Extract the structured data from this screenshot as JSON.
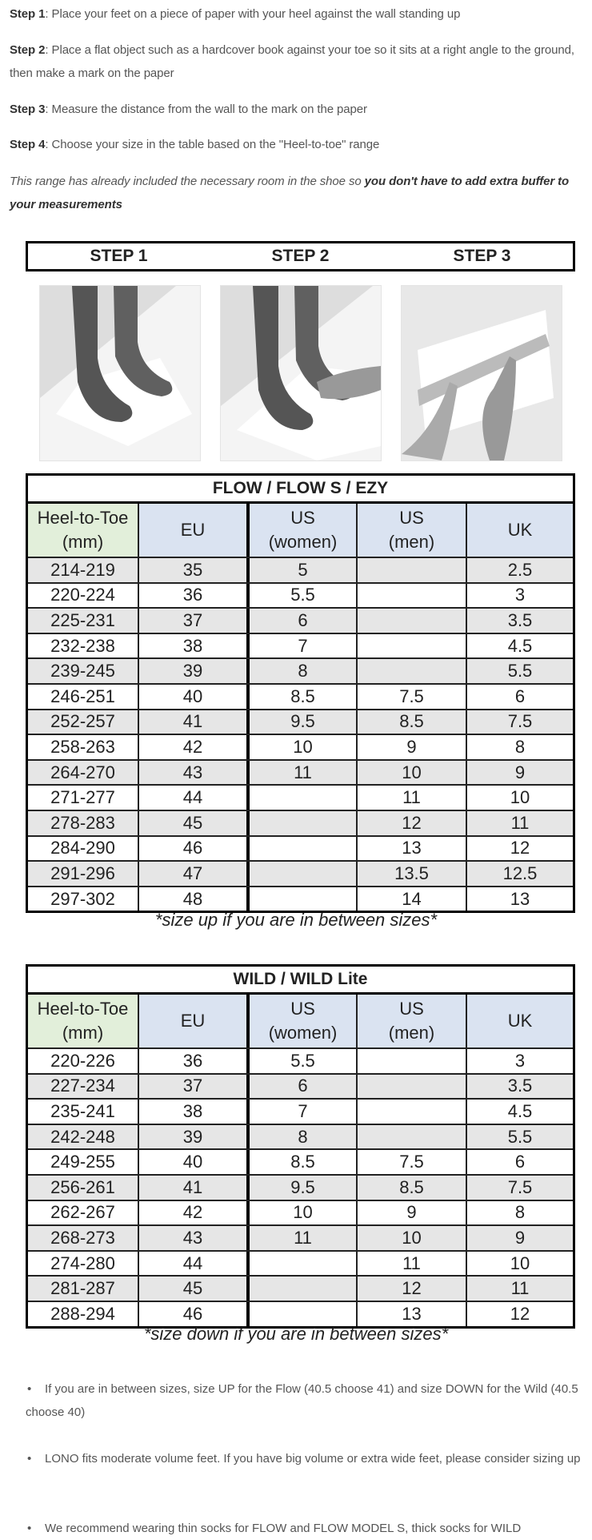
{
  "instructions": [
    {
      "label": "Step 1",
      "text": ": Place your feet on a piece of paper with your heel against the wall standing up"
    },
    {
      "label": "Step 2",
      "text": ": Place a flat object such as a hardcover book against your toe so it sits at a right angle to the ground, then make a mark on the paper"
    },
    {
      "label": "Step 3",
      "text": ": Measure the distance from the wall to the mark on the paper"
    },
    {
      "label": "Step 4",
      "text": ": Choose your size in the table based on the \"Heel-to-toe\" range"
    }
  ],
  "note": {
    "italic": "This range has already included the necessary room in the shoe so ",
    "bold": "you don't have to add extra buffer to your measurements"
  },
  "steps_header": [
    "STEP 1",
    "STEP 2",
    "STEP 3"
  ],
  "headers": [
    [
      "Heel-to-Toe",
      "(mm)"
    ],
    [
      "EU"
    ],
    [
      "US",
      "(women)"
    ],
    [
      "US",
      "(men)"
    ],
    [
      "UK"
    ]
  ],
  "colors": {
    "header_green": "#e2efda",
    "header_blue": "#dae3f1",
    "row_grey": "#e6e6e6"
  },
  "tables": [
    {
      "title": "FLOW / FLOW S / EZY",
      "rows": [
        [
          "214-219",
          "35",
          "5",
          "",
          "2.5"
        ],
        [
          "220-224",
          "36",
          "5.5",
          "",
          "3"
        ],
        [
          "225-231",
          "37",
          "6",
          "",
          "3.5"
        ],
        [
          "232-238",
          "38",
          "7",
          "",
          "4.5"
        ],
        [
          "239-245",
          "39",
          "8",
          "",
          "5.5"
        ],
        [
          "246-251",
          "40",
          "8.5",
          "7.5",
          "6"
        ],
        [
          "252-257",
          "41",
          "9.5",
          "8.5",
          "7.5"
        ],
        [
          "258-263",
          "42",
          "10",
          "9",
          "8"
        ],
        [
          "264-270",
          "43",
          "11",
          "10",
          "9"
        ],
        [
          "271-277",
          "44",
          "",
          "11",
          "10"
        ],
        [
          "278-283",
          "45",
          "",
          "12",
          "11"
        ],
        [
          "284-290",
          "46",
          "",
          "13",
          "12"
        ],
        [
          "291-296",
          "47",
          "",
          "13.5",
          "12.5"
        ],
        [
          "297-302",
          "48",
          "",
          "14",
          "13"
        ]
      ],
      "footnote": "*size up if you are in between sizes*"
    },
    {
      "title": "WILD / WILD Lite",
      "rows": [
        [
          "220-226",
          "36",
          "5.5",
          "",
          "3"
        ],
        [
          "227-234",
          "37",
          "6",
          "",
          "3.5"
        ],
        [
          "235-241",
          "38",
          "7",
          "",
          "4.5"
        ],
        [
          "242-248",
          "39",
          "8",
          "",
          "5.5"
        ],
        [
          "249-255",
          "40",
          "8.5",
          "7.5",
          "6"
        ],
        [
          "256-261",
          "41",
          "9.5",
          "8.5",
          "7.5"
        ],
        [
          "262-267",
          "42",
          "10",
          "9",
          "8"
        ],
        [
          "268-273",
          "43",
          "11",
          "10",
          "9"
        ],
        [
          "274-280",
          "44",
          "",
          "11",
          "10"
        ],
        [
          "281-287",
          "45",
          "",
          "12",
          "11"
        ],
        [
          "288-294",
          "46",
          "",
          "13",
          "12"
        ]
      ],
      "footnote": "*size down if you are in between sizes*"
    }
  ],
  "bullets": [
    "If you are in between sizes, size UP for the Flow (40.5 choose 41) and size DOWN for the Wild (40.5 choose 40)",
    "LONO fits moderate volume feet. If you have big volume or extra wide feet, please consider sizing up",
    "We recommend wearing thin socks for FLOW and FLOW MODEL S, thick socks for WILD"
  ]
}
